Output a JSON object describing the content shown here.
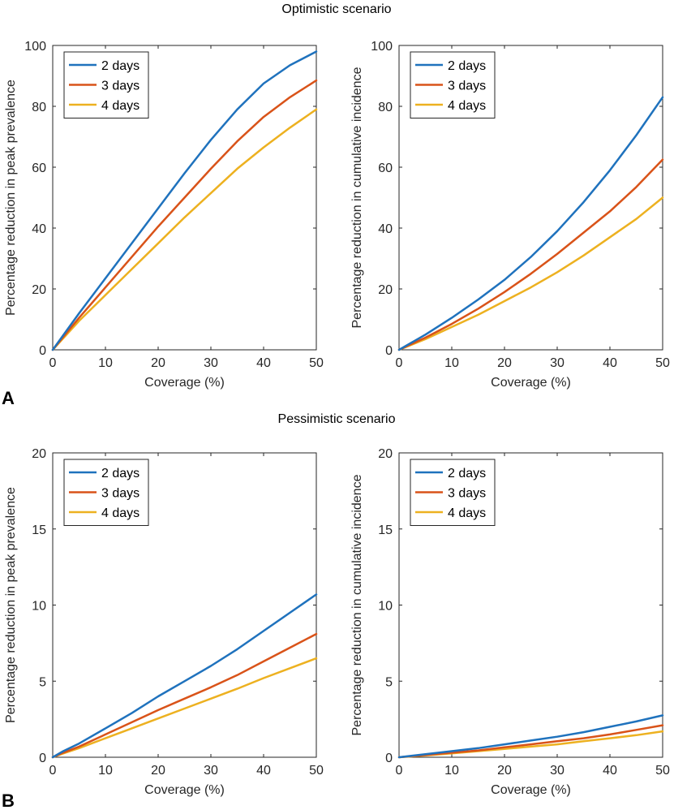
{
  "titles": {
    "top": "Optimistic scenario",
    "bottom": "Pessimistic scenario"
  },
  "panel_labels": [
    "A",
    "B"
  ],
  "series_colors": {
    "2 days": "#1f72bd",
    "3 days": "#d95319",
    "4 days": "#edb120"
  },
  "chart_data": [
    {
      "type": "line",
      "group": "Optimistic scenario",
      "xlabel": "Coverage (%)",
      "ylabel": "Percentage reduction in peak prevalence",
      "xlim": [
        0,
        50
      ],
      "ylim": [
        0,
        100
      ],
      "xticks": [
        0,
        10,
        20,
        30,
        40,
        50
      ],
      "yticks": [
        0,
        20,
        40,
        60,
        80,
        100
      ],
      "legend": [
        "2 days",
        "3 days",
        "4 days"
      ],
      "legend_position": "top-left",
      "x": [
        0,
        5,
        10,
        15,
        20,
        25,
        30,
        35,
        40,
        45,
        50
      ],
      "series": [
        {
          "name": "2 days",
          "values": [
            0,
            12,
            23.5,
            35,
            46.5,
            58,
            69,
            79,
            87.5,
            93.5,
            98
          ]
        },
        {
          "name": "3 days",
          "values": [
            0,
            10.5,
            20.5,
            30.5,
            40.5,
            50,
            59.5,
            68.5,
            76.5,
            83,
            88.5
          ]
        },
        {
          "name": "4 days",
          "values": [
            0,
            9.5,
            18,
            26.5,
            35,
            43.5,
            51.5,
            59.5,
            66.5,
            73,
            79
          ]
        }
      ]
    },
    {
      "type": "line",
      "group": "Optimistic scenario",
      "xlabel": "Coverage (%)",
      "ylabel": "Percentage reduction in cumulative incidence",
      "xlim": [
        0,
        50
      ],
      "ylim": [
        0,
        100
      ],
      "xticks": [
        0,
        10,
        20,
        30,
        40,
        50
      ],
      "yticks": [
        0,
        20,
        40,
        60,
        80,
        100
      ],
      "legend": [
        "2 days",
        "3 days",
        "4 days"
      ],
      "legend_position": "top-left",
      "x": [
        0,
        5,
        10,
        15,
        20,
        25,
        30,
        35,
        40,
        45,
        50
      ],
      "series": [
        {
          "name": "2 days",
          "values": [
            0,
            5,
            10.5,
            16.5,
            23,
            30.5,
            39,
            48.5,
            59,
            70.5,
            83
          ]
        },
        {
          "name": "3 days",
          "values": [
            0,
            4,
            8.5,
            13.5,
            19,
            25,
            31.5,
            38.5,
            45.5,
            53.5,
            62.5
          ]
        },
        {
          "name": "4 days",
          "values": [
            0,
            3.5,
            7.5,
            11.5,
            16,
            20.5,
            25.5,
            31,
            37,
            43,
            50
          ]
        }
      ]
    },
    {
      "type": "line",
      "group": "Pessimistic scenario",
      "xlabel": "Coverage (%)",
      "ylabel": "Percentage reduction in peak prevalence",
      "xlim": [
        0,
        50
      ],
      "ylim": [
        0,
        20
      ],
      "xticks": [
        0,
        10,
        20,
        30,
        40,
        50
      ],
      "yticks": [
        0,
        5,
        10,
        15,
        20
      ],
      "legend": [
        "2 days",
        "3 days",
        "4 days"
      ],
      "legend_position": "top-left",
      "x": [
        0,
        2,
        5,
        10,
        15,
        20,
        25,
        30,
        35,
        40,
        45,
        50
      ],
      "series": [
        {
          "name": "2 days",
          "values": [
            0,
            0.4,
            0.9,
            1.9,
            2.9,
            4.0,
            5.0,
            6.0,
            7.1,
            8.3,
            9.5,
            10.7
          ]
        },
        {
          "name": "3 days",
          "values": [
            0,
            0.3,
            0.7,
            1.5,
            2.3,
            3.1,
            3.85,
            4.6,
            5.4,
            6.3,
            7.2,
            8.1
          ]
        },
        {
          "name": "4 days",
          "values": [
            0,
            0.25,
            0.6,
            1.25,
            1.9,
            2.55,
            3.2,
            3.85,
            4.5,
            5.2,
            5.85,
            6.5
          ]
        }
      ]
    },
    {
      "type": "line",
      "group": "Pessimistic scenario",
      "xlabel": "Coverage (%)",
      "ylabel": "Percentage reduction in cumulative incidence",
      "xlim": [
        0,
        50
      ],
      "ylim": [
        0,
        20
      ],
      "xticks": [
        0,
        10,
        20,
        30,
        40,
        50
      ],
      "yticks": [
        0,
        5,
        10,
        15,
        20
      ],
      "legend": [
        "2 days",
        "3 days",
        "4 days"
      ],
      "legend_position": "top-left",
      "x": [
        0,
        5,
        10,
        15,
        20,
        25,
        30,
        35,
        40,
        45,
        50
      ],
      "series": [
        {
          "name": "2 days",
          "values": [
            0,
            0.2,
            0.4,
            0.6,
            0.85,
            1.1,
            1.35,
            1.65,
            2.0,
            2.35,
            2.75
          ]
        },
        {
          "name": "3 days",
          "values": [
            0,
            0.15,
            0.3,
            0.45,
            0.65,
            0.85,
            1.05,
            1.25,
            1.5,
            1.8,
            2.1
          ]
        },
        {
          "name": "4 days",
          "values": [
            0,
            0.12,
            0.25,
            0.4,
            0.55,
            0.7,
            0.85,
            1.05,
            1.25,
            1.45,
            1.7
          ]
        }
      ]
    }
  ]
}
